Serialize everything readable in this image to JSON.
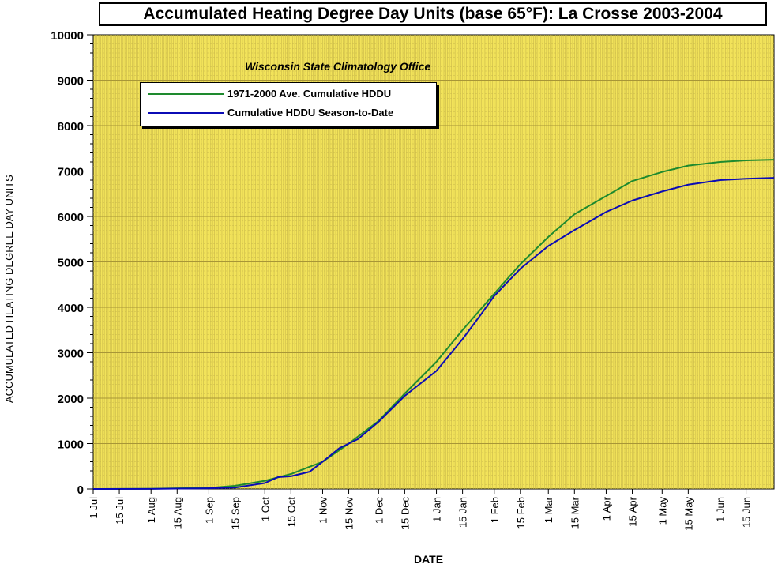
{
  "chart_data": {
    "type": "line",
    "title": "Accumulated Heating Degree Day Units (base 65°F): La Crosse 2003-2004",
    "subtitle": "Wisconsin State Climatology Office",
    "xlabel": "DATE",
    "ylabel": "ACCUMULATED HEATING DEGREE DAY UNITS",
    "ylim": [
      0,
      10000
    ],
    "xlim": [
      "2003-07-01",
      "2004-06-30"
    ],
    "yticks": [
      "0",
      "1000",
      "2000",
      "3000",
      "4000",
      "5000",
      "6000",
      "7000",
      "8000",
      "9000",
      "10000"
    ],
    "xticks": [
      "1 Jul",
      "15 Jul",
      "1 Aug",
      "15 Aug",
      "1 Sep",
      "15 Sep",
      "1 Oct",
      "15 Oct",
      "1 Nov",
      "15 Nov",
      "1 Dec",
      "15 Dec",
      "1 Jan",
      "15 Jan",
      "1 Feb",
      "15 Feb",
      "1 Mar",
      "15 Mar",
      "1 Apr",
      "15 Apr",
      "1 May",
      "15 May",
      "1 Jun",
      "15 Jun"
    ],
    "xtick_dates": [
      "2003-07-01",
      "2003-07-15",
      "2003-08-01",
      "2003-08-15",
      "2003-09-01",
      "2003-09-15",
      "2003-10-01",
      "2003-10-15",
      "2003-11-01",
      "2003-11-15",
      "2003-12-01",
      "2003-12-15",
      "2004-01-01",
      "2004-01-15",
      "2004-02-01",
      "2004-02-15",
      "2004-03-01",
      "2004-03-15",
      "2004-04-01",
      "2004-04-15",
      "2004-05-01",
      "2004-05-15",
      "2004-06-01",
      "2004-06-15"
    ],
    "grid": true,
    "legend_position": "top-left",
    "plot_background": "#f2e35a",
    "grid_color": "#c9b84a",
    "series": [
      {
        "name": "1971-2000 Ave. Cumulative HDDU",
        "color": "#1e8a2e",
        "x": [
          "2003-07-01",
          "2003-08-01",
          "2003-08-15",
          "2003-09-01",
          "2003-09-15",
          "2003-10-01",
          "2003-10-15",
          "2003-11-01",
          "2003-11-15",
          "2003-12-01",
          "2003-12-15",
          "2004-01-01",
          "2004-01-15",
          "2004-02-01",
          "2004-02-15",
          "2004-03-01",
          "2004-03-15",
          "2004-04-01",
          "2004-04-15",
          "2004-05-01",
          "2004-05-15",
          "2004-06-01",
          "2004-06-15",
          "2004-06-30"
        ],
        "values": [
          0,
          5,
          15,
          25,
          70,
          180,
          330,
          600,
          1000,
          1500,
          2100,
          2800,
          3500,
          4300,
          4950,
          5550,
          6050,
          6450,
          6780,
          6980,
          7120,
          7200,
          7235,
          7250
        ]
      },
      {
        "name": "Cumulative HDDU Season-to-Date",
        "color": "#0b0bb5",
        "x": [
          "2003-07-01",
          "2003-08-01",
          "2003-08-15",
          "2003-09-01",
          "2003-09-15",
          "2003-10-01",
          "2003-10-08",
          "2003-10-15",
          "2003-10-25",
          "2003-11-01",
          "2003-11-10",
          "2003-11-20",
          "2003-12-01",
          "2003-12-15",
          "2004-01-01",
          "2004-01-08",
          "2004-01-15",
          "2004-01-25",
          "2004-02-01",
          "2004-02-15",
          "2004-03-01",
          "2004-03-15",
          "2004-04-01",
          "2004-04-15",
          "2004-05-01",
          "2004-05-15",
          "2004-06-01",
          "2004-06-15",
          "2004-06-30"
        ],
        "values": [
          0,
          2,
          8,
          15,
          30,
          130,
          260,
          280,
          380,
          600,
          900,
          1100,
          1480,
          2050,
          2600,
          2950,
          3300,
          3850,
          4250,
          4850,
          5350,
          5700,
          6100,
          6350,
          6550,
          6700,
          6800,
          6830,
          6850
        ]
      }
    ]
  }
}
